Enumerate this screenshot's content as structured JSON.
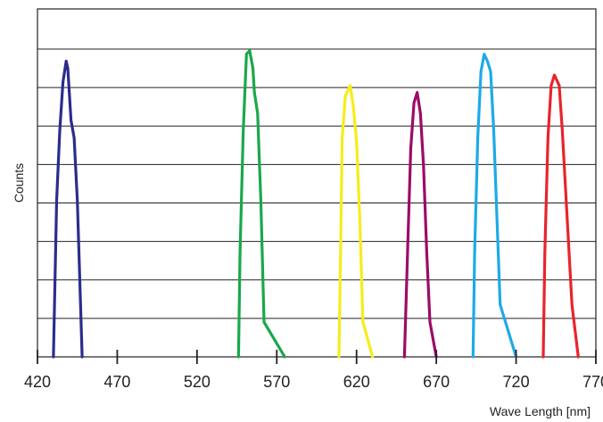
{
  "chart_data": {
    "type": "line",
    "title": "",
    "xlabel": "Wave Length [nm]",
    "ylabel": "Counts",
    "xlim": [
      420,
      770
    ],
    "ylim": [
      0,
      10
    ],
    "grid": {
      "horizontal": true,
      "vertical": false,
      "lines": 8
    },
    "x_ticks": [
      420,
      470,
      520,
      570,
      620,
      670,
      720,
      770
    ],
    "x_tick_labels": [
      "420",
      "470",
      "520",
      "570",
      "620",
      "670",
      "720",
      "770"
    ],
    "legend": "none",
    "series": [
      {
        "color": "#2b2d8c",
        "points": [
          [
            430,
            0
          ],
          [
            432,
            4.5
          ],
          [
            434,
            6.5
          ],
          [
            436,
            7.9
          ],
          [
            438,
            8.5
          ],
          [
            439,
            8.3
          ],
          [
            441,
            6.8
          ],
          [
            443,
            6.3
          ],
          [
            445,
            4.5
          ],
          [
            448,
            0
          ]
        ]
      },
      {
        "color": "#1aa84a",
        "points": [
          [
            546,
            0
          ],
          [
            547,
            3
          ],
          [
            549,
            6.5
          ],
          [
            551,
            8.7
          ],
          [
            553,
            8.8
          ],
          [
            555,
            8.3
          ],
          [
            556,
            7.6
          ],
          [
            558,
            7.0
          ],
          [
            560,
            4.5
          ],
          [
            562,
            1.0
          ],
          [
            575,
            0
          ]
        ]
      },
      {
        "color": "#f7ec1c",
        "points": [
          [
            609,
            0
          ],
          [
            610,
            3
          ],
          [
            611,
            6.3
          ],
          [
            613,
            7.5
          ],
          [
            616,
            7.8
          ],
          [
            618,
            7.2
          ],
          [
            620,
            6.2
          ],
          [
            622,
            4
          ],
          [
            624,
            1
          ],
          [
            630,
            0
          ]
        ]
      },
      {
        "color": "#9b0c68",
        "points": [
          [
            650,
            0
          ],
          [
            652,
            3
          ],
          [
            654,
            6
          ],
          [
            656,
            7.3
          ],
          [
            658,
            7.6
          ],
          [
            660,
            7.0
          ],
          [
            662,
            5.5
          ],
          [
            664,
            3
          ],
          [
            666,
            1
          ],
          [
            670,
            0
          ]
        ]
      },
      {
        "color": "#1eaae7",
        "points": [
          [
            693,
            0
          ],
          [
            694,
            3
          ],
          [
            696,
            6.3
          ],
          [
            698,
            8.2
          ],
          [
            700,
            8.7
          ],
          [
            702,
            8.5
          ],
          [
            704,
            8.2
          ],
          [
            706,
            6.5
          ],
          [
            708,
            4
          ],
          [
            710,
            1.5
          ],
          [
            720,
            0
          ]
        ]
      },
      {
        "color": "#e8242b",
        "points": [
          [
            737,
            0
          ],
          [
            738,
            3
          ],
          [
            740,
            6.3
          ],
          [
            742,
            7.8
          ],
          [
            744,
            8.1
          ],
          [
            747,
            7.8
          ],
          [
            749,
            6.5
          ],
          [
            752,
            4
          ],
          [
            755,
            1.5
          ],
          [
            759,
            0
          ]
        ]
      }
    ]
  }
}
